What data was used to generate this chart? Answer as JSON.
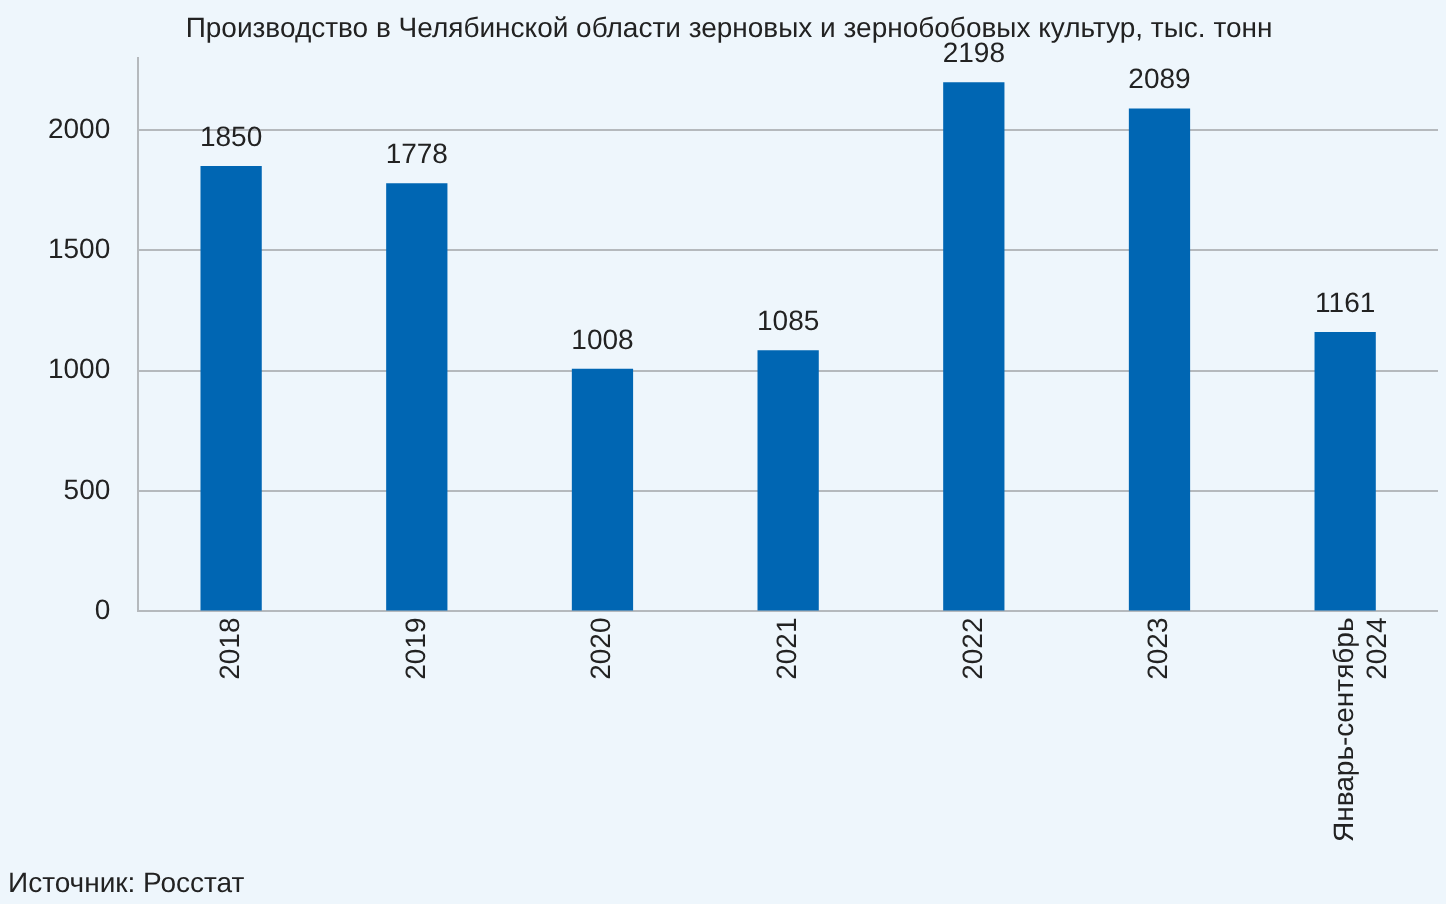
{
  "chart_data": {
    "type": "bar",
    "title": "Производство в Челябинской области зерновых и зернобобовых культур, тыс. тонн",
    "categories": [
      "2018",
      "2019",
      "2020",
      "2021",
      "2022",
      "2023",
      "Январь-сентябрь 2024"
    ],
    "values": [
      1850,
      1778,
      1008,
      1085,
      2198,
      2089,
      1161
    ],
    "color": "#0066b3",
    "ylim": [
      0,
      2300
    ],
    "yticks": [
      0,
      500,
      1000,
      1500,
      2000
    ],
    "grid": "y",
    "legend": false,
    "data_labels": true,
    "annotations": [
      "Источник: Росстат"
    ]
  }
}
